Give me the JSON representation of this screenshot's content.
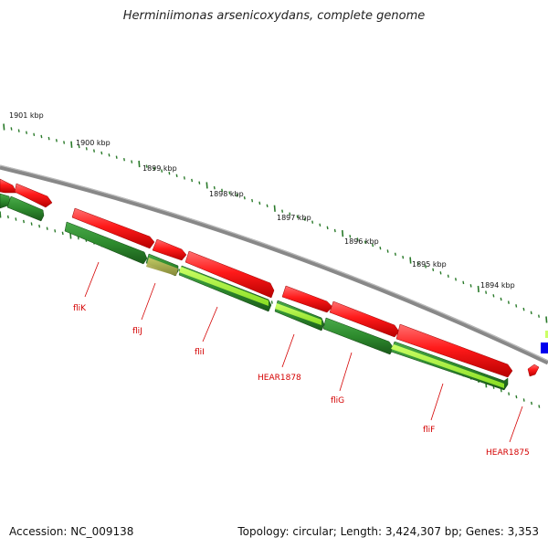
{
  "title": "Herminiimonas arsenicoxydans, complete genome",
  "accession_text": "Accession: NC_009138",
  "topology_text": "Topology: circular; Length: 3,424,307 bp; Genes: 3,353",
  "scale_labels": [
    "1901 kbp",
    "1900 kbp",
    "1899 kbp",
    "1898 kbp",
    "1897 kbp",
    "1896 kbp",
    "1895 kbp",
    "1894 kbp"
  ],
  "gene_labels": [
    "fliK",
    "fliJ",
    "fliI",
    "HEAR1878",
    "fliG",
    "fliF",
    "HEAR1875"
  ],
  "colors": {
    "backbone": "#888888",
    "forward_gene": "#ff1a1a",
    "reverse_gene": "#2e8b2e",
    "reverse_highlight": "#aaff33",
    "ticks": "#2a7a2a",
    "label": "#d40000",
    "edge_feature": "#0000ee"
  }
}
